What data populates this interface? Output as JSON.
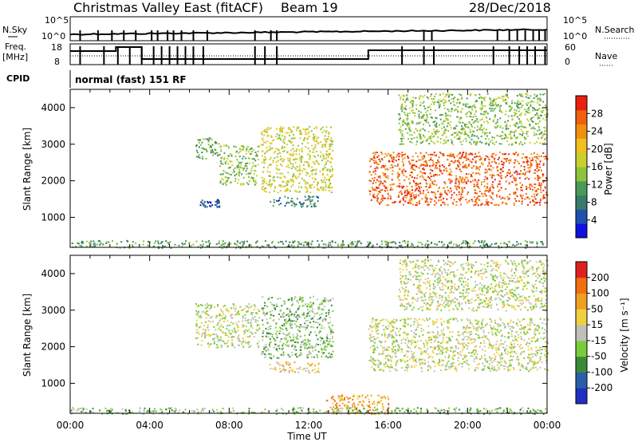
{
  "header": {
    "title": "Christmas Valley East (fitACF)",
    "beam": "Beam 19",
    "date": "28/Dec/2018"
  },
  "labels": {
    "nsky": "N.Sky",
    "nsearch": "N.Search",
    "freq_line1": "Freq.",
    "freq_line2": "[MHz]",
    "nave": "Nave",
    "cpid": "CPID",
    "cpid_value": "normal (fast) 151 RF",
    "noise_tick_top": "10^5",
    "noise_tick_bottom": "10^0",
    "freq_tick_top": "18",
    "freq_tick_bottom": "8",
    "nave_tick_top": "60",
    "nave_tick_bottom": "0"
  },
  "chart_data": [
    {
      "type": "heatmap",
      "name": "power",
      "xlabel": "",
      "ylabel": "Slant Range [km]",
      "y_ticks": [
        "1000",
        "2000",
        "3000",
        "4000"
      ],
      "x_range_hours": [
        0,
        24
      ],
      "y_range_km": [
        180,
        4500
      ],
      "colorbar": {
        "label": "Power [dB]",
        "ticks": [
          "4",
          "8",
          "12",
          "16",
          "20",
          "24",
          "28"
        ],
        "colors": [
          "#1010e0",
          "#2050b0",
          "#3a7a6a",
          "#4a9a5a",
          "#8cc43c",
          "#c8d030",
          "#f0c020",
          "#f09010",
          "#f06010",
          "#e82010"
        ]
      },
      "regions": [
        {
          "t0": 6.3,
          "t1": 7.5,
          "r0": 2600,
          "r1": 3200,
          "level": 3
        },
        {
          "t0": 7.5,
          "t1": 9.5,
          "r0": 1900,
          "r1": 3000,
          "level": 4
        },
        {
          "t0": 9.6,
          "t1": 13.2,
          "r0": 1700,
          "r1": 3500,
          "level": 5
        },
        {
          "t0": 10.0,
          "t1": 12.5,
          "r0": 1300,
          "r1": 1600,
          "level": 2
        },
        {
          "t0": 6.5,
          "t1": 7.5,
          "r0": 1300,
          "r1": 1500,
          "level": 1
        },
        {
          "t0": 15.0,
          "t1": 24.0,
          "r0": 1350,
          "r1": 2800,
          "level": 8
        },
        {
          "t0": 16.5,
          "t1": 24.0,
          "r0": 3000,
          "r1": 4400,
          "level": 4
        },
        {
          "t0": 0.0,
          "t1": 24.0,
          "r0": 180,
          "r1": 380,
          "level": 3
        }
      ]
    },
    {
      "type": "heatmap",
      "name": "velocity",
      "xlabel": "Time UT",
      "ylabel": "Slant Range [km]",
      "x_ticks": [
        "00:00",
        "04:00",
        "08:00",
        "12:00",
        "16:00",
        "20:00",
        "00:00"
      ],
      "y_ticks": [
        "1000",
        "2000",
        "3000",
        "4000"
      ],
      "x_range_hours": [
        0,
        24
      ],
      "y_range_km": [
        180,
        4500
      ],
      "colorbar": {
        "label": "Velocity [m s⁻¹]",
        "ticks": [
          "200",
          "100",
          "50",
          "15",
          "-15",
          "-50",
          "-100",
          "-200"
        ],
        "colors": [
          "#2030c0",
          "#2a60a8",
          "#3a8a3a",
          "#7acc3a",
          "#c0c0b8",
          "#f0d040",
          "#f0a020",
          "#f07010",
          "#e02020"
        ]
      },
      "regions": [
        {
          "t0": 6.3,
          "t1": 9.5,
          "r0": 2000,
          "r1": 3200,
          "level": 4
        },
        {
          "t0": 9.6,
          "t1": 13.2,
          "r0": 1700,
          "r1": 3400,
          "level": 3
        },
        {
          "t0": 10.0,
          "t1": 12.5,
          "r0": 1300,
          "r1": 1600,
          "level": 5
        },
        {
          "t0": 15.0,
          "t1": 24.0,
          "r0": 1350,
          "r1": 2800,
          "level": 4
        },
        {
          "t0": 16.5,
          "t1": 24.0,
          "r0": 3000,
          "r1": 4400,
          "level": 4
        },
        {
          "t0": 12.8,
          "t1": 16.0,
          "r0": 180,
          "r1": 700,
          "level": 6
        },
        {
          "t0": 0.0,
          "t1": 24.0,
          "r0": 180,
          "r1": 350,
          "level": 3
        }
      ]
    }
  ]
}
